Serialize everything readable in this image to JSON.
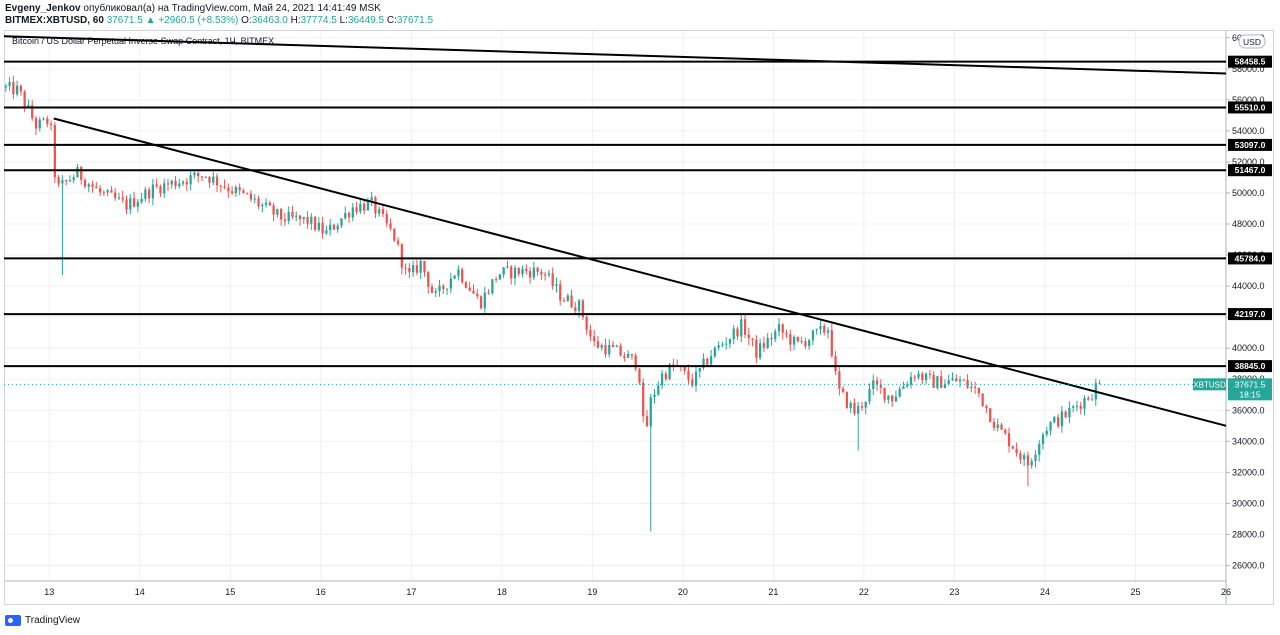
{
  "header": {
    "author": "Evgeny_Jenkov",
    "published_text": "опубликовал(а) на TradingView.com, Май 24, 2021 14:41:49 MSK",
    "symbol_line": "BITMEX:XBTUSD, 60",
    "last_price": "37671.5",
    "change": "+2960.5 (+8.53%)",
    "o_label": "O:",
    "o_value": "36463.0",
    "h_label": "H:",
    "h_value": "37774.5",
    "l_label": "L:",
    "l_value": "36449.5",
    "c_label": "C:",
    "c_value": "37671.5"
  },
  "chart_data": {
    "type": "candlestick",
    "title": "Bitcoin / US Dollar Perpetual Inverse Swap Contract, 1Ч, BITMEX",
    "currency_label": "USD",
    "x_ticks": [
      "13",
      "14",
      "15",
      "16",
      "17",
      "18",
      "19",
      "20",
      "21",
      "22",
      "23",
      "24",
      "25",
      "26"
    ],
    "x_range": [
      12.5,
      26
    ],
    "y_ticks": [
      26000,
      28000,
      30000,
      32000,
      34000,
      36000,
      38000,
      40000,
      42000,
      44000,
      46000,
      48000,
      50000,
      52000,
      54000,
      56000,
      58000,
      60000
    ],
    "y_range": [
      25000,
      60500
    ],
    "up_color": "#26a69a",
    "down_color": "#ef5350",
    "horizontal_levels": [
      {
        "label": "58458.5",
        "value": 58458.5
      },
      {
        "label": "55510.0",
        "value": 55510.0
      },
      {
        "label": "53097.0",
        "value": 53097.0
      },
      {
        "label": "51467.0",
        "value": 51467.0
      },
      {
        "label": "45784.0",
        "value": 45784.0
      },
      {
        "label": "42197.0",
        "value": 42197.0
      },
      {
        "label": "38845.0",
        "value": 38845.0
      }
    ],
    "trendlines": [
      {
        "from": [
          12.5,
          60100
        ],
        "to": [
          26,
          57700
        ]
      },
      {
        "from": [
          13.05,
          54800
        ],
        "to": [
          26,
          35000
        ]
      }
    ],
    "price_marker": {
      "symbol": "XBTUSD",
      "value": 37671.5,
      "label": "37671.5",
      "countdown": "18:15",
      "color": "#26a69a"
    },
    "anchors": [
      [
        12.52,
        56800
      ],
      [
        12.7,
        56600
      ],
      [
        12.9,
        54300
      ],
      [
        13.05,
        54700
      ],
      [
        13.12,
        50200
      ],
      [
        13.35,
        51300
      ],
      [
        13.6,
        50000
      ],
      [
        13.9,
        49200
      ],
      [
        14.2,
        50300
      ],
      [
        14.5,
        50800
      ],
      [
        14.75,
        51200
      ],
      [
        15.0,
        50400
      ],
      [
        15.3,
        49500
      ],
      [
        15.6,
        48400
      ],
      [
        15.9,
        48200
      ],
      [
        16.1,
        47400
      ],
      [
        16.4,
        49100
      ],
      [
        16.6,
        49300
      ],
      [
        16.85,
        47200
      ],
      [
        17.0,
        44500
      ],
      [
        17.15,
        45500
      ],
      [
        17.3,
        43200
      ],
      [
        17.55,
        45100
      ],
      [
        17.8,
        42900
      ],
      [
        18.0,
        44800
      ],
      [
        18.3,
        45000
      ],
      [
        18.5,
        44900
      ],
      [
        18.7,
        43300
      ],
      [
        18.9,
        42700
      ],
      [
        19.05,
        40300
      ],
      [
        19.3,
        39800
      ],
      [
        19.55,
        39000
      ],
      [
        19.62,
        34000
      ],
      [
        19.68,
        36500
      ],
      [
        19.8,
        38200
      ],
      [
        19.95,
        38900
      ],
      [
        20.15,
        37800
      ],
      [
        20.35,
        39600
      ],
      [
        20.5,
        40400
      ],
      [
        20.7,
        41500
      ],
      [
        20.85,
        39700
      ],
      [
        21.1,
        41200
      ],
      [
        21.3,
        40200
      ],
      [
        21.55,
        41000
      ],
      [
        21.65,
        41300
      ],
      [
        21.75,
        37300
      ],
      [
        21.95,
        35800
      ],
      [
        22.15,
        37600
      ],
      [
        22.35,
        36800
      ],
      [
        22.6,
        38400
      ],
      [
        22.8,
        37800
      ],
      [
        23.1,
        37900
      ],
      [
        23.3,
        37200
      ],
      [
        23.5,
        35000
      ],
      [
        23.65,
        34000
      ],
      [
        23.85,
        32500
      ],
      [
        24.05,
        34900
      ],
      [
        24.25,
        35600
      ],
      [
        24.45,
        36600
      ],
      [
        24.55,
        37000
      ],
      [
        24.62,
        37671.5
      ]
    ],
    "wick_extremes": [
      {
        "x": 13.14,
        "low": 44700
      },
      {
        "x": 19.66,
        "low": 28200
      },
      {
        "x": 21.93,
        "low": 33400
      },
      {
        "x": 23.8,
        "low": 31100
      }
    ]
  },
  "footer": {
    "brand": "TradingView"
  }
}
